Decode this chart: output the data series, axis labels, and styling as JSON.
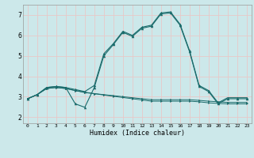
{
  "title": "",
  "xlabel": "Humidex (Indice chaleur)",
  "background_color": "#cce8ea",
  "grid_color": "#e8c8c8",
  "line_color": "#1a6b6b",
  "xlim": [
    -0.5,
    23.5
  ],
  "ylim": [
    1.7,
    7.5
  ],
  "xticks": [
    0,
    1,
    2,
    3,
    4,
    5,
    6,
    7,
    8,
    9,
    10,
    11,
    12,
    13,
    14,
    15,
    16,
    17,
    18,
    19,
    20,
    21,
    22,
    23
  ],
  "yticks": [
    2,
    3,
    4,
    5,
    6,
    7
  ],
  "line1_x": [
    0,
    1,
    2,
    3,
    4,
    5,
    6,
    7,
    8,
    9,
    10,
    11,
    12,
    13,
    14,
    15,
    16,
    17,
    18,
    19,
    20,
    21,
    22,
    23
  ],
  "line1_y": [
    2.9,
    3.1,
    3.4,
    3.45,
    3.4,
    3.3,
    3.2,
    3.15,
    3.1,
    3.05,
    3.0,
    2.95,
    2.9,
    2.85,
    2.85,
    2.85,
    2.85,
    2.85,
    2.82,
    2.78,
    2.75,
    2.72,
    2.72,
    2.72
  ],
  "line2_x": [
    0,
    1,
    2,
    3,
    4,
    5,
    6,
    7,
    8,
    9,
    10,
    11,
    12,
    13,
    14,
    15,
    16,
    17,
    18,
    19,
    20,
    21,
    22,
    23
  ],
  "line2_y": [
    2.9,
    3.1,
    3.4,
    3.45,
    3.4,
    3.3,
    3.22,
    3.15,
    3.08,
    3.02,
    2.96,
    2.9,
    2.84,
    2.78,
    2.78,
    2.78,
    2.78,
    2.78,
    2.75,
    2.7,
    2.67,
    2.65,
    2.65,
    2.65
  ],
  "line3_x": [
    0,
    1,
    2,
    3,
    4,
    5,
    6,
    7,
    8,
    9,
    10,
    11,
    12,
    13,
    14,
    15,
    16,
    17,
    18,
    19,
    20,
    21,
    22,
    23
  ],
  "line3_y": [
    2.9,
    3.1,
    3.45,
    3.5,
    3.45,
    2.65,
    2.48,
    3.45,
    5.0,
    5.55,
    6.15,
    5.95,
    6.35,
    6.45,
    7.05,
    7.1,
    6.5,
    5.2,
    3.5,
    3.25,
    2.65,
    2.9,
    2.9,
    2.9
  ],
  "line4_x": [
    0,
    1,
    2,
    3,
    4,
    5,
    6,
    7,
    8,
    9,
    10,
    11,
    12,
    13,
    14,
    15,
    16,
    17,
    18,
    19,
    20,
    21,
    22,
    23
  ],
  "line4_y": [
    2.9,
    3.1,
    3.45,
    3.5,
    3.45,
    3.35,
    3.25,
    3.55,
    5.1,
    5.6,
    6.2,
    6.0,
    6.4,
    6.5,
    7.1,
    7.15,
    6.55,
    5.25,
    3.55,
    3.3,
    2.7,
    2.95,
    2.95,
    2.95
  ]
}
